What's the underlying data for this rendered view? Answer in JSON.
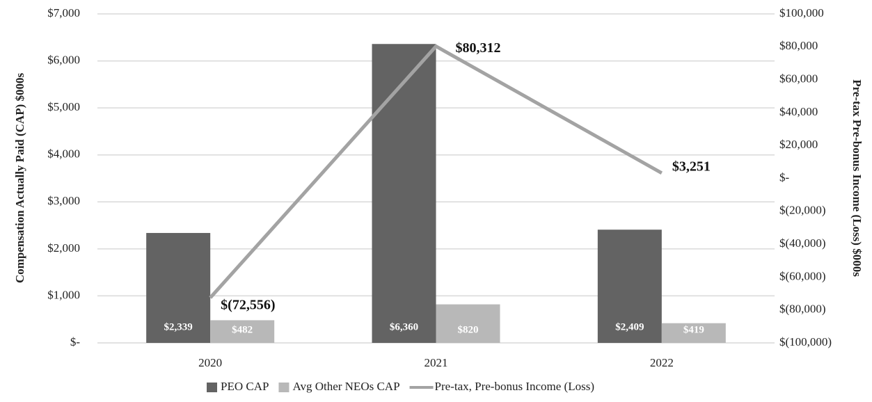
{
  "chart_data": {
    "type": "bar",
    "categories": [
      "2020",
      "2021",
      "2022"
    ],
    "ylabel": "Compensation Actually Paid (CAP) $000s",
    "y2label": "Pre-tax Pre-bonus Income (Loss) $000s",
    "ylim": [
      0,
      7000
    ],
    "yticks": [
      {
        "value": 0,
        "label": "$-"
      },
      {
        "value": 1000,
        "label": "$1,000"
      },
      {
        "value": 2000,
        "label": "$2,000"
      },
      {
        "value": 3000,
        "label": "$3,000"
      },
      {
        "value": 4000,
        "label": "$4,000"
      },
      {
        "value": 5000,
        "label": "$5,000"
      },
      {
        "value": 6000,
        "label": "$6,000"
      },
      {
        "value": 7000,
        "label": "$7,000"
      }
    ],
    "y2lim": [
      -100000,
      100000
    ],
    "y2ticks": [
      {
        "value": -100000,
        "label": "$(100,000)"
      },
      {
        "value": -80000,
        "label": "$(80,000)"
      },
      {
        "value": -60000,
        "label": "$(60,000)"
      },
      {
        "value": -40000,
        "label": "$(40,000)"
      },
      {
        "value": -20000,
        "label": "$(20,000)"
      },
      {
        "value": 0,
        "label": "$-"
      },
      {
        "value": 20000,
        "label": "$20,000"
      },
      {
        "value": 40000,
        "label": "$40,000"
      },
      {
        "value": 60000,
        "label": "$60,000"
      },
      {
        "value": 80000,
        "label": "$80,000"
      },
      {
        "value": 100000,
        "label": "$100,000"
      }
    ],
    "grid": true,
    "legend": "bottom",
    "series": [
      {
        "name": "PEO CAP",
        "color": "#636363",
        "values": [
          2339,
          6360,
          2409
        ],
        "value_labels": [
          "$2,339",
          "$6,360",
          "$2,409"
        ]
      },
      {
        "name": "Avg Other NEOs CAP",
        "color": "#b8b8b8",
        "values": [
          482,
          820,
          419
        ],
        "value_labels": [
          "$482",
          "$820",
          "$419"
        ]
      },
      {
        "name": "Pre-tax, Pre-bonus Income (Loss)",
        "color": "#a3a3a3",
        "type": "line",
        "axis": "y2",
        "values": [
          -72556,
          80312,
          3251
        ],
        "value_labels": [
          "$(72,556)",
          "$80,312",
          "$3,251"
        ]
      }
    ]
  }
}
